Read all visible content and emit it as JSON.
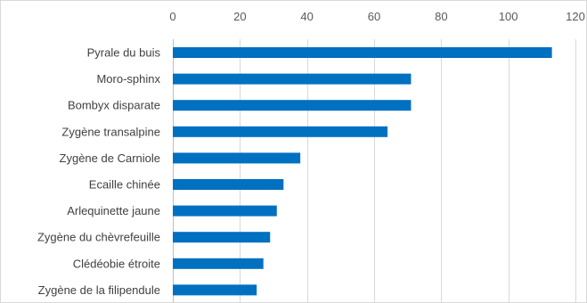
{
  "chart_data": {
    "type": "bar",
    "orientation": "horizontal",
    "categories": [
      "Pyrale du buis",
      "Moro-sphinx",
      "Bombyx disparate",
      "Zygène transalpine",
      "Zygène de Carniole",
      "Ecaille chinée",
      "Arlequinette jaune",
      "Zygène du chèvrefeuille",
      "Clédéobie étroite",
      "Zygène de la filipendule"
    ],
    "values": [
      113,
      71,
      71,
      64,
      38,
      33,
      31,
      29,
      27,
      25
    ],
    "xlim": [
      0,
      120
    ],
    "xticks": [
      0,
      20,
      40,
      60,
      80,
      100,
      120
    ],
    "x_axis_position": "top",
    "grid": true,
    "bar_color": "#0070c0",
    "legend": "none"
  }
}
